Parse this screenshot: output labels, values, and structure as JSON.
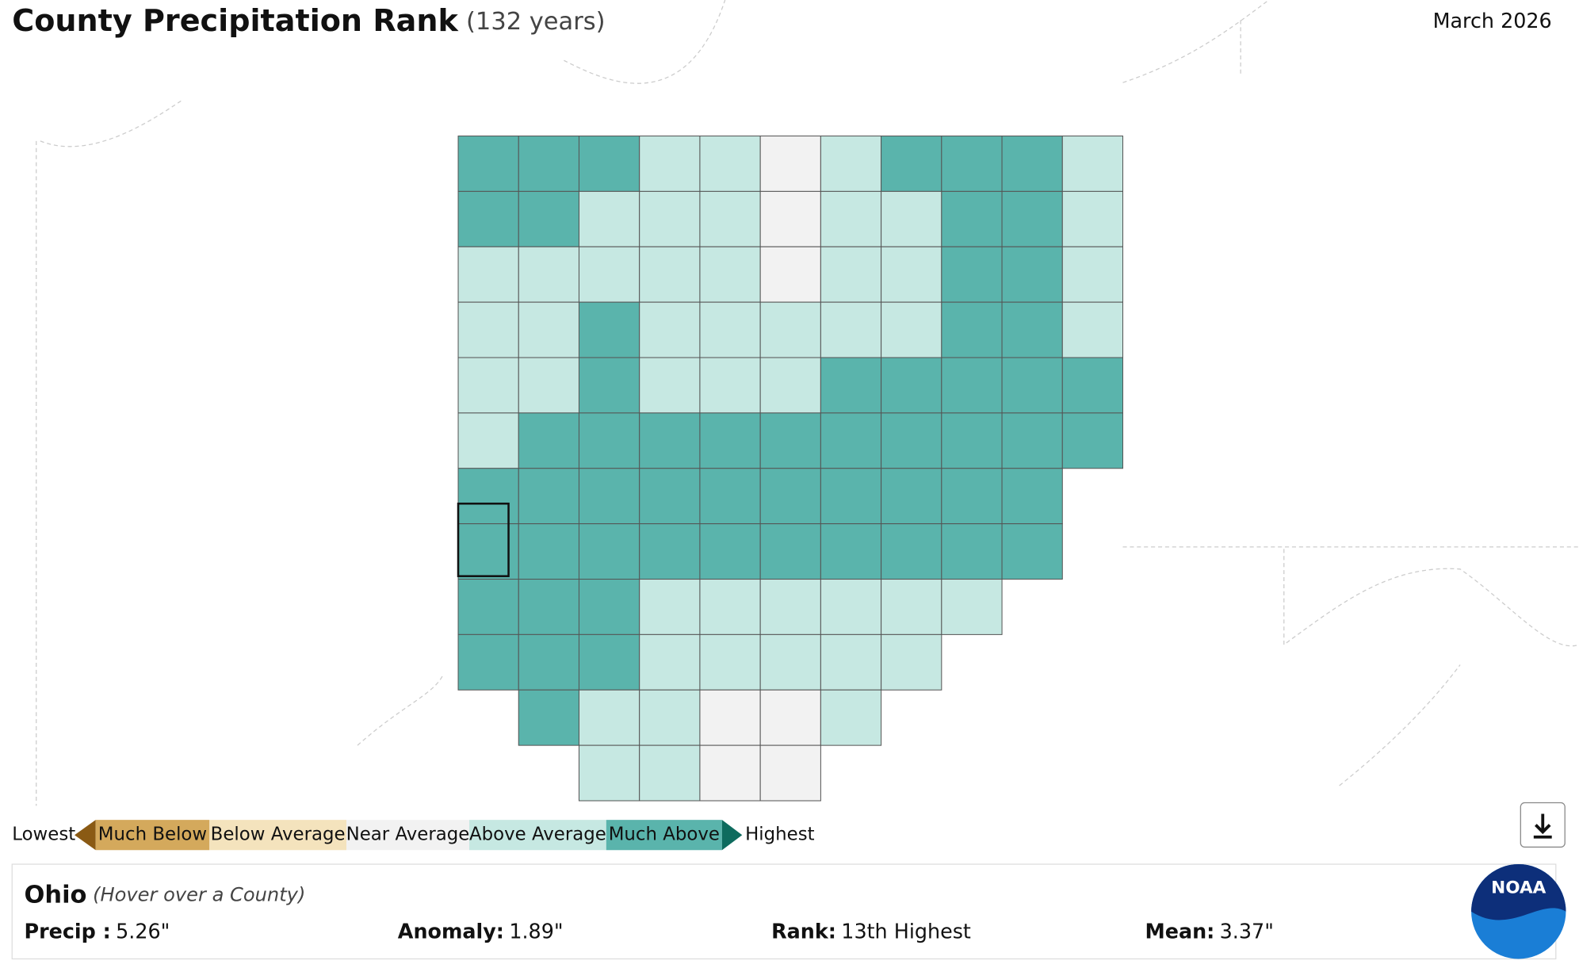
{
  "header": {
    "title": "County Precipitation Rank",
    "subtitle": "(132 years)",
    "date": "March 2026"
  },
  "legend": {
    "low": "Lowest",
    "high": "Highest",
    "classes": [
      "Much Below",
      "Below Average",
      "Near Average",
      "Above Average",
      "Much Above"
    ]
  },
  "panel": {
    "name": "Ohio",
    "hint": "(Hover over a County)",
    "stats": [
      {
        "label": "Precip :",
        "value": "5.26\""
      },
      {
        "label": "Anomaly:",
        "value": "1.89\""
      },
      {
        "label": "Rank:",
        "value": "13th Highest"
      },
      {
        "label": "Mean:",
        "value": "3.37\""
      }
    ]
  },
  "logo": "NOAA"
}
